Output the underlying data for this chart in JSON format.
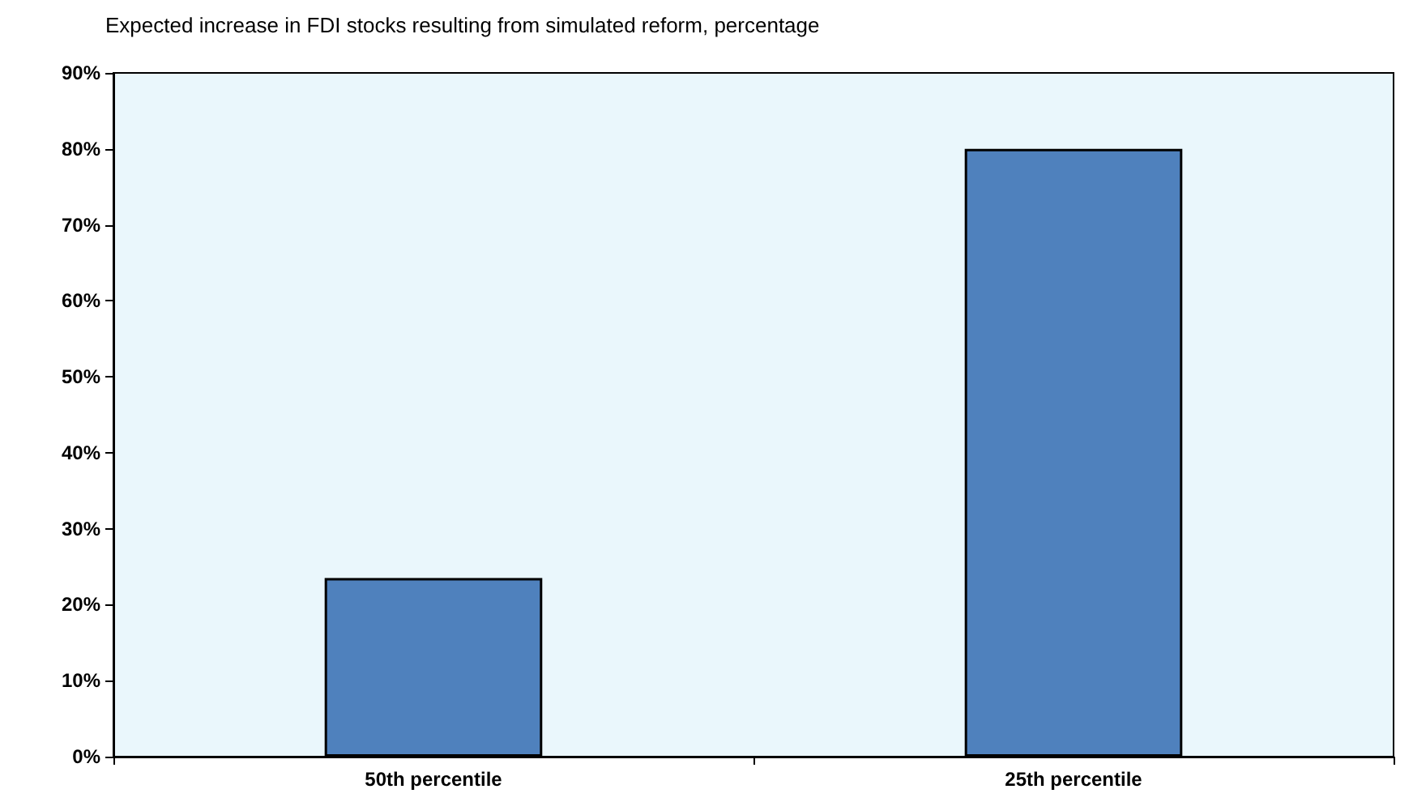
{
  "chart_data": {
    "type": "bar",
    "title": "Expected increase in FDI stocks resulting from simulated reform, percentage",
    "categories": [
      "50th percentile",
      "25th percentile"
    ],
    "values": [
      23.5,
      80
    ],
    "color": "#4f81bd",
    "ylim": [
      0,
      90
    ],
    "yticks": [
      {
        "value": 0,
        "label": "0%"
      },
      {
        "value": 10,
        "label": "10%"
      },
      {
        "value": 20,
        "label": "20%"
      },
      {
        "value": 30,
        "label": "30%"
      },
      {
        "value": 40,
        "label": "40%"
      },
      {
        "value": 50,
        "label": "50%"
      },
      {
        "value": 60,
        "label": "60%"
      },
      {
        "value": 70,
        "label": "70%"
      },
      {
        "value": 80,
        "label": "80%"
      },
      {
        "value": 90,
        "label": "90%"
      }
    ],
    "grid": false
  }
}
